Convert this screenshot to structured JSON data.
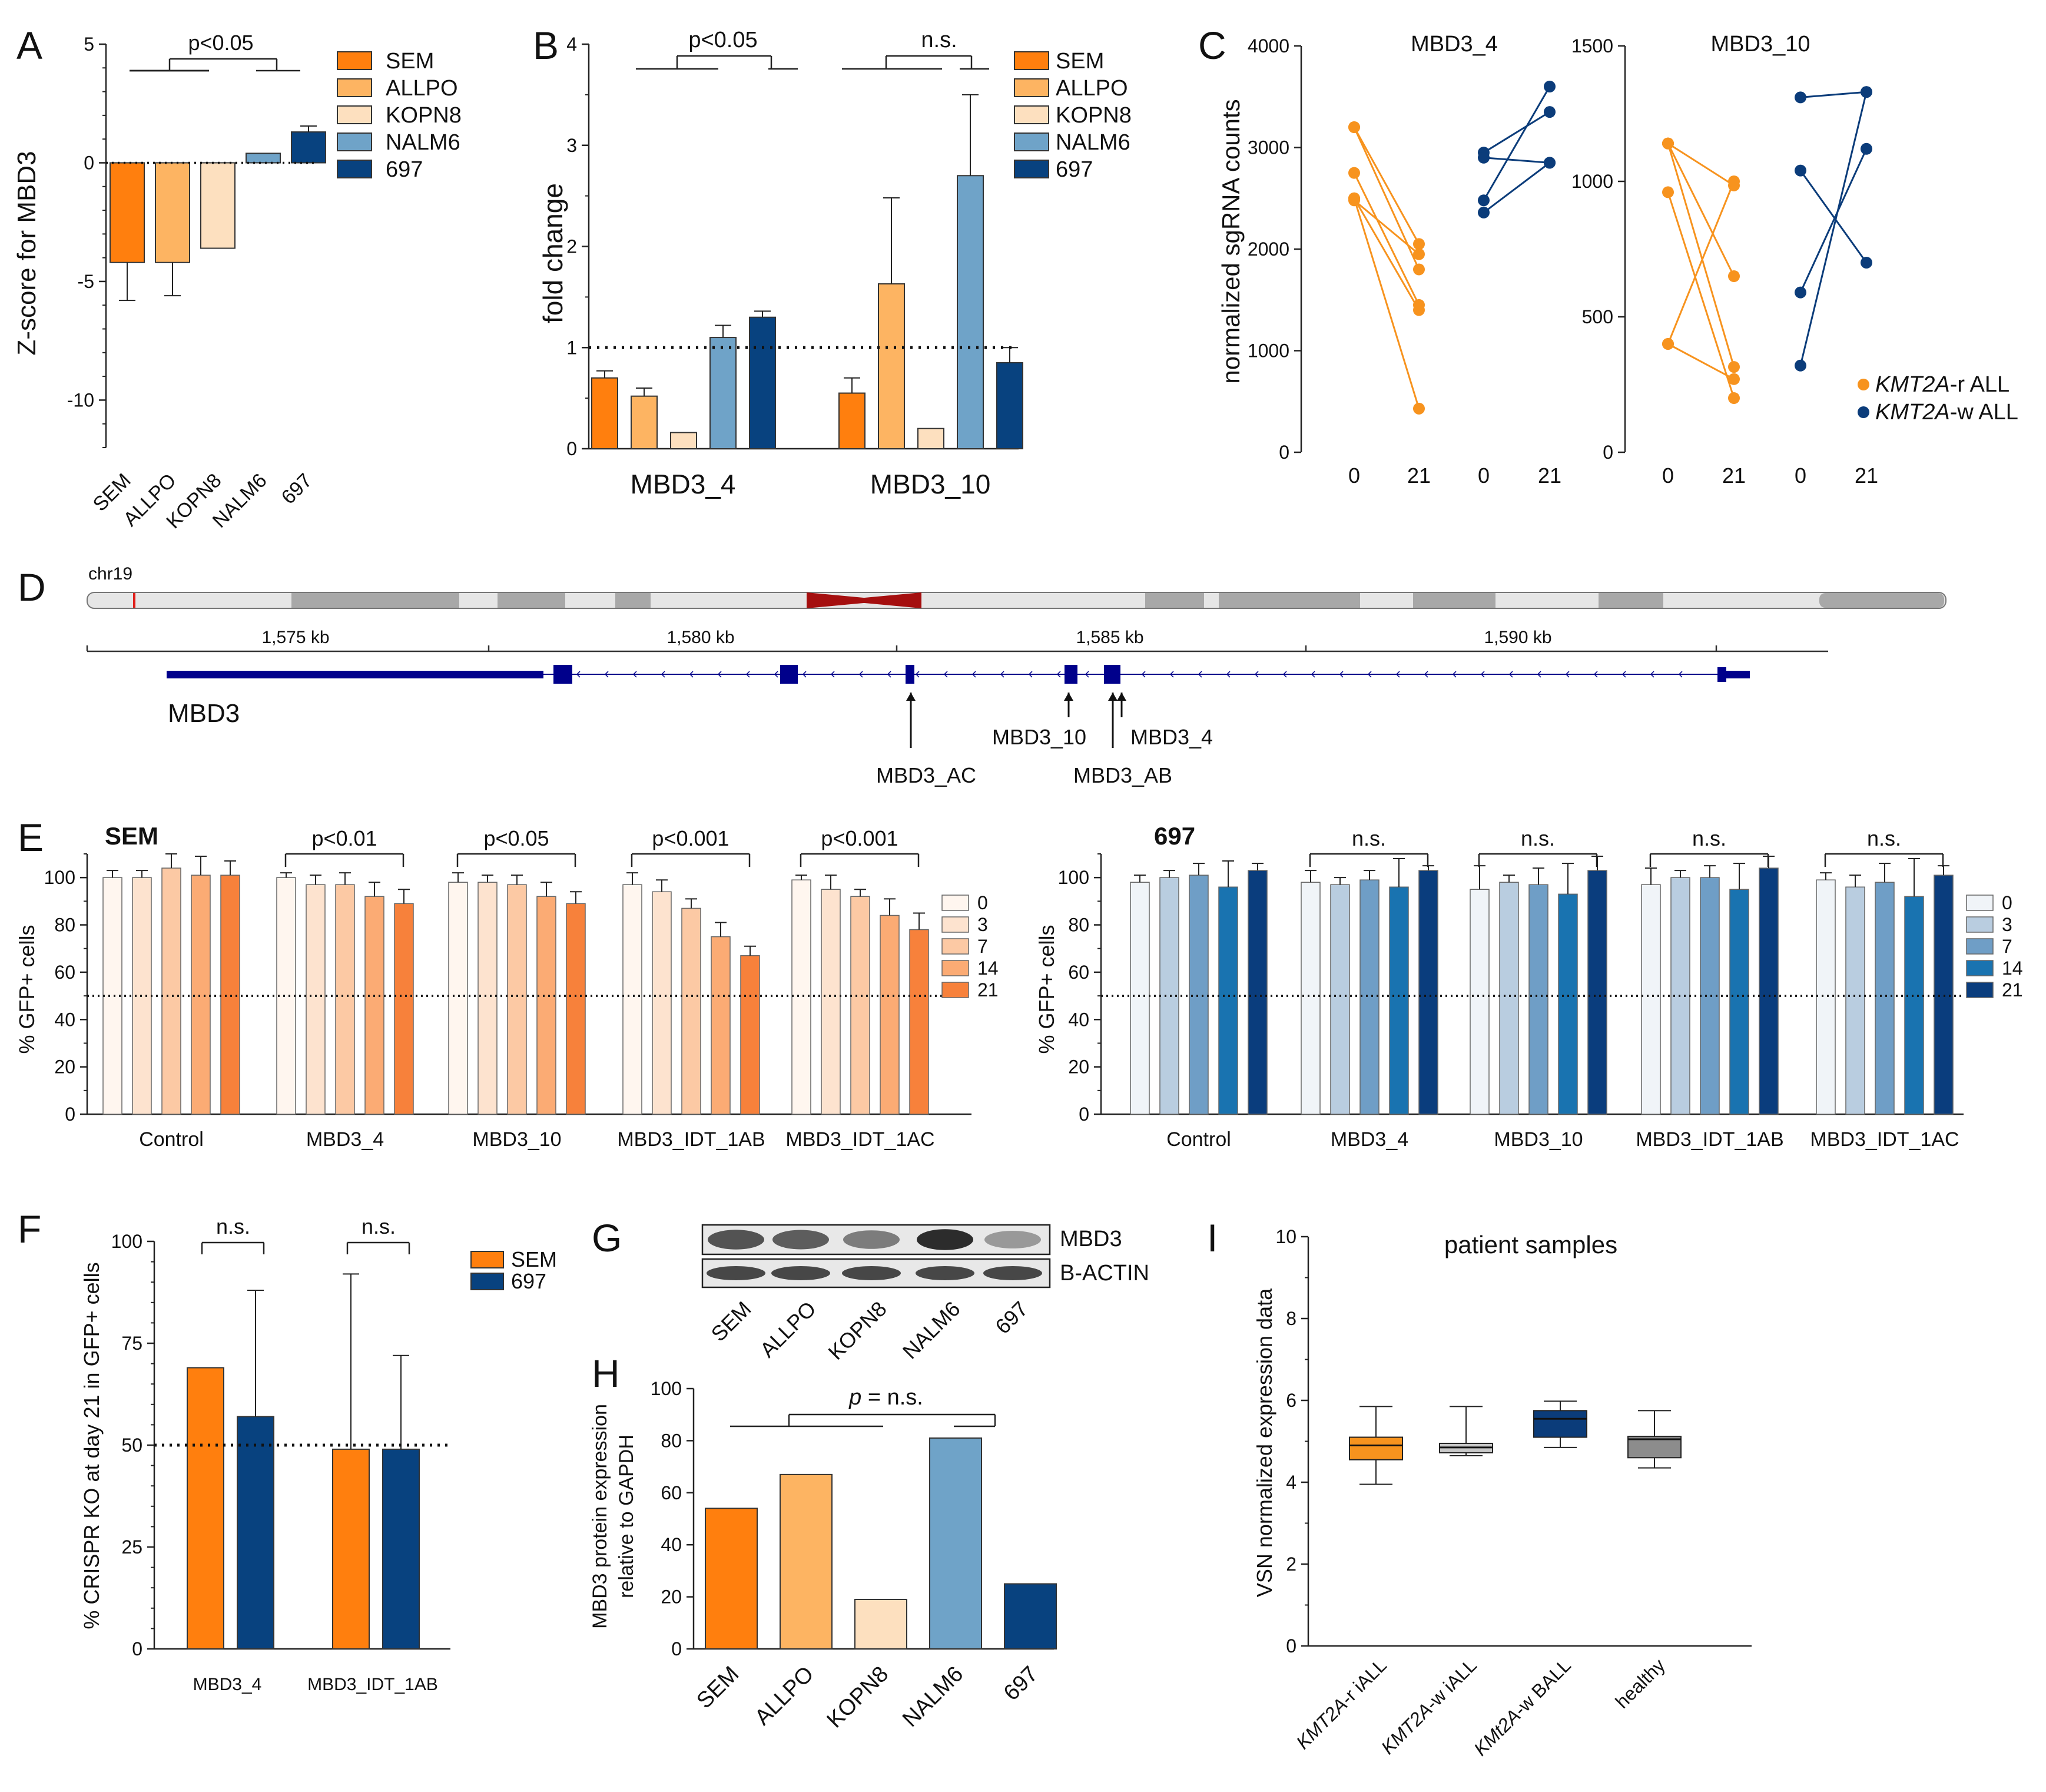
{
  "colors": {
    "SEM": "#ff7f0e",
    "ALLPO": "#fdb462",
    "KOPN8": "#fde0bf",
    "NALM6": "#6fa3c8",
    "697": "#08427f",
    "orange": "#f7931e",
    "navy": "#0b3c7a",
    "gray": "#c8c8c8",
    "darkgray": "#8c8c8c",
    "centromere": "#a50f0f",
    "gene": "#00008b",
    "sem_days": [
      "#fff6ef",
      "#fde3cf",
      "#fcc9a4",
      "#fbab74",
      "#f7813b"
    ],
    "c697_days": [
      "#f0f4f8",
      "#b9cde0",
      "#6f9ec6",
      "#1973b0",
      "#0a3d7d"
    ]
  },
  "panels": {
    "A": "A",
    "B": "B",
    "C": "C",
    "D": "D",
    "E": "E",
    "F": "F",
    "G": "G",
    "H": "H",
    "I": "I"
  },
  "chart_data": [
    {
      "id": "A",
      "type": "bar",
      "ylabel": "Z-score for MBD3",
      "categories": [
        "SEM",
        "ALLPO",
        "KOPN8",
        "NALM6",
        "697"
      ],
      "values": [
        -4.2,
        -4.2,
        -3.6,
        0.4,
        1.3
      ],
      "errors": [
        1.6,
        1.4,
        0,
        0,
        0.25
      ],
      "ylim": [
        -12,
        5
      ],
      "yticks": [
        5,
        0,
        -5,
        -10
      ],
      "legend": [
        "SEM",
        "ALLPO",
        "KOPN8",
        "NALM6",
        "697"
      ],
      "reference_line": 0,
      "significance": [
        "p<0.05"
      ]
    },
    {
      "id": "B",
      "type": "bar",
      "ylabel": "fold change",
      "groups": [
        "MBD3_4",
        "MBD3_10"
      ],
      "series": [
        {
          "name": "SEM",
          "values": [
            0.7,
            0.55
          ],
          "errors": [
            0.07,
            0.15
          ]
        },
        {
          "name": "ALLPO",
          "values": [
            0.52,
            1.63
          ],
          "errors": [
            0.08,
            0.85
          ]
        },
        {
          "name": "KOPN8",
          "values": [
            0.16,
            0.2
          ],
          "errors": [
            0,
            0
          ]
        },
        {
          "name": "NALM6",
          "values": [
            1.1,
            2.7
          ],
          "errors": [
            0.12,
            0.8
          ]
        },
        {
          "name": "697",
          "values": [
            1.3,
            0.85
          ],
          "errors": [
            0.06,
            0.15
          ]
        }
      ],
      "ylim": [
        0,
        4
      ],
      "yticks": [
        0,
        1,
        2,
        3,
        4
      ],
      "reference_line": 1,
      "significance": [
        "p<0.05",
        "n.s."
      ]
    },
    {
      "id": "C",
      "type": "scatter",
      "ylabel": "normalized sgRNA counts",
      "subplots": [
        {
          "title": "MBD3_4",
          "ylim": [
            0,
            4000
          ],
          "yticks": [
            0,
            1000,
            2000,
            3000,
            4000
          ],
          "xticks": [
            "0",
            "21",
            "0",
            "21"
          ],
          "pairs_r": [
            [
              3200,
              1800
            ],
            [
              3200,
              2050
            ],
            [
              2750,
              1450
            ],
            [
              2500,
              1400
            ],
            [
              2480,
              1950
            ],
            [
              2500,
              430
            ]
          ],
          "pairs_w": [
            [
              2950,
              3350
            ],
            [
              2900,
              2850
            ],
            [
              2480,
              3600
            ],
            [
              2360,
              2850
            ]
          ]
        },
        {
          "title": "MBD3_10",
          "ylim": [
            0,
            1500
          ],
          "yticks": [
            0,
            500,
            1000,
            1500
          ],
          "xticks": [
            "0",
            "21",
            "0",
            "21"
          ],
          "pairs_r": [
            [
              1140,
              315
            ],
            [
              1140,
              985
            ],
            [
              960,
              200
            ],
            [
              400,
              270
            ],
            [
              400,
              1000
            ],
            [
              1140,
              650
            ]
          ],
          "pairs_w": [
            [
              1310,
              1330
            ],
            [
              1040,
              700
            ],
            [
              590,
              1120
            ],
            [
              320,
              1330
            ]
          ]
        }
      ],
      "legend": [
        {
          "gene": "KMT2A",
          "suffix": "-r  ALL"
        },
        {
          "gene": "KMT2A",
          "suffix": "-w  ALL"
        }
      ]
    },
    {
      "id": "E1",
      "type": "bar",
      "title": "SEM",
      "ylabel": "% GFP+ cells",
      "groups": [
        "Control",
        "MBD3_4",
        "MBD3_10",
        "MBD3_IDT_1AB",
        "MBD3_IDT_1AC"
      ],
      "days": [
        "0",
        "3",
        "7",
        "14",
        "21"
      ],
      "values": [
        [
          100,
          100,
          104,
          101,
          101
        ],
        [
          100,
          97,
          97,
          92,
          89
        ],
        [
          98,
          98,
          97,
          92,
          89
        ],
        [
          97,
          94,
          87,
          75,
          67
        ],
        [
          99,
          95,
          92,
          84,
          78
        ]
      ],
      "errors": [
        [
          3,
          3,
          6,
          8,
          6
        ],
        [
          2,
          4,
          5,
          6,
          6
        ],
        [
          4,
          3,
          4,
          6,
          5
        ],
        [
          5,
          5,
          4,
          6,
          4
        ],
        [
          2,
          6,
          3,
          7,
          7
        ]
      ],
      "ylim": [
        0,
        110
      ],
      "yticks": [
        0,
        20,
        40,
        60,
        80,
        100
      ],
      "reference_line": 50,
      "significance": [
        "p<0.01",
        "p<0.05",
        "p<0.001",
        "p<0.001"
      ]
    },
    {
      "id": "E2",
      "type": "bar",
      "title": "697",
      "ylabel": "% GFP+ cells",
      "groups": [
        "Control",
        "MBD3_4",
        "MBD3_10",
        "MBD3_IDT_1AB",
        "MBD3_IDT_1AC"
      ],
      "days": [
        "0",
        "3",
        "7",
        "14",
        "21"
      ],
      "values": [
        [
          98,
          100,
          101,
          96,
          103
        ],
        [
          98,
          97,
          99,
          96,
          103
        ],
        [
          95,
          98,
          97,
          93,
          103
        ],
        [
          97,
          100,
          100,
          95,
          104
        ],
        [
          99,
          96,
          98,
          92,
          101
        ]
      ],
      "errors": [
        [
          3,
          3,
          5,
          11,
          3
        ],
        [
          5,
          3,
          4,
          12,
          2
        ],
        [
          10,
          3,
          7,
          13,
          6
        ],
        [
          7,
          3,
          5,
          11,
          5
        ],
        [
          3,
          5,
          8,
          16,
          4
        ]
      ],
      "ylim": [
        0,
        110
      ],
      "yticks": [
        0,
        20,
        40,
        60,
        80,
        100
      ],
      "reference_line": 50,
      "significance": [
        "n.s.",
        "n.s.",
        "n.s.",
        "n.s."
      ]
    },
    {
      "id": "F",
      "type": "bar",
      "ylabel": "% CRISPR KO at day 21 in GFP+ cells",
      "groups": [
        "MBD3_4",
        "MBD3_IDT_1AB"
      ],
      "series": [
        {
          "name": "SEM",
          "values": [
            69,
            49
          ],
          "errors": [
            0,
            43
          ]
        },
        {
          "name": "697",
          "values": [
            57,
            49
          ],
          "errors": [
            31,
            23
          ]
        }
      ],
      "ylim": [
        0,
        100
      ],
      "yticks": [
        0,
        25,
        50,
        75,
        100
      ],
      "reference_line": 50,
      "significance": [
        "n.s.",
        "n.s."
      ]
    },
    {
      "id": "H",
      "type": "bar",
      "ylabel_lines": [
        "MBD3 protein expression",
        "relative to GAPDH"
      ],
      "categories": [
        "SEM",
        "ALLPO",
        "KOPN8",
        "NALM6",
        "697"
      ],
      "values": [
        54,
        67,
        19,
        81,
        25
      ],
      "ylim": [
        0,
        100
      ],
      "yticks": [
        0,
        20,
        40,
        60,
        80,
        100
      ],
      "significance_prefix": "p",
      "significance_suffix": " = n.s."
    },
    {
      "id": "I",
      "type": "box",
      "title": "patient samples",
      "ylabel": "VSN normalized expression data",
      "categories": [
        {
          "gene": "KMT2A",
          "suffix": "-r iALL"
        },
        {
          "gene": "KMT2A",
          "suffix": "-w iALL"
        },
        {
          "gene": "KMt2A",
          "suffix": "-w BALL"
        },
        {
          "gene": "",
          "suffix": "healthy"
        }
      ],
      "boxes": [
        {
          "min": 3.95,
          "q1": 4.55,
          "median": 4.9,
          "q3": 5.1,
          "max": 5.85
        },
        {
          "min": 4.65,
          "q1": 4.72,
          "median": 4.85,
          "q3": 4.95,
          "max": 5.85
        },
        {
          "min": 4.85,
          "q1": 5.1,
          "median": 5.55,
          "q3": 5.75,
          "max": 5.98
        },
        {
          "min": 4.35,
          "q1": 4.6,
          "median": 5.05,
          "q3": 5.12,
          "max": 5.75
        }
      ],
      "ylim": [
        0,
        10
      ],
      "yticks": [
        0,
        2,
        4,
        6,
        8,
        10
      ]
    }
  ],
  "genome": {
    "chrom": "chr19",
    "ticks": [
      "1,575 kb",
      "1,580 kb",
      "1,585 kb",
      "1,590 kb"
    ],
    "gene": "MBD3",
    "guides": [
      "MBD3_10",
      "MBD3_4",
      "MBD3_AC",
      "MBD3_AB"
    ]
  },
  "western": {
    "bands": [
      "MBD3",
      "B-ACTIN"
    ],
    "lanes": [
      "SEM",
      "ALLPO",
      "KOPN8",
      "NALM6",
      "697"
    ]
  }
}
